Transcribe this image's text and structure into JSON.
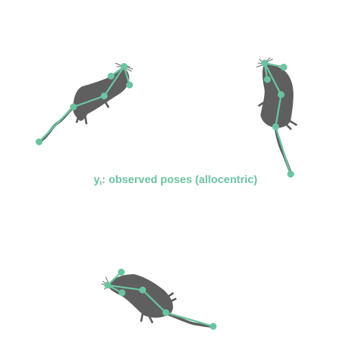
{
  "caption": {
    "var": "y",
    "sub": "t",
    "text": ": observed poses (allocentric)"
  },
  "colors": {
    "body": "#5f5f5f",
    "skeleton": "#6cc3a0",
    "caption": "#6cc3a0"
  },
  "icons": {
    "subject": "mouse-silhouette-icon"
  }
}
